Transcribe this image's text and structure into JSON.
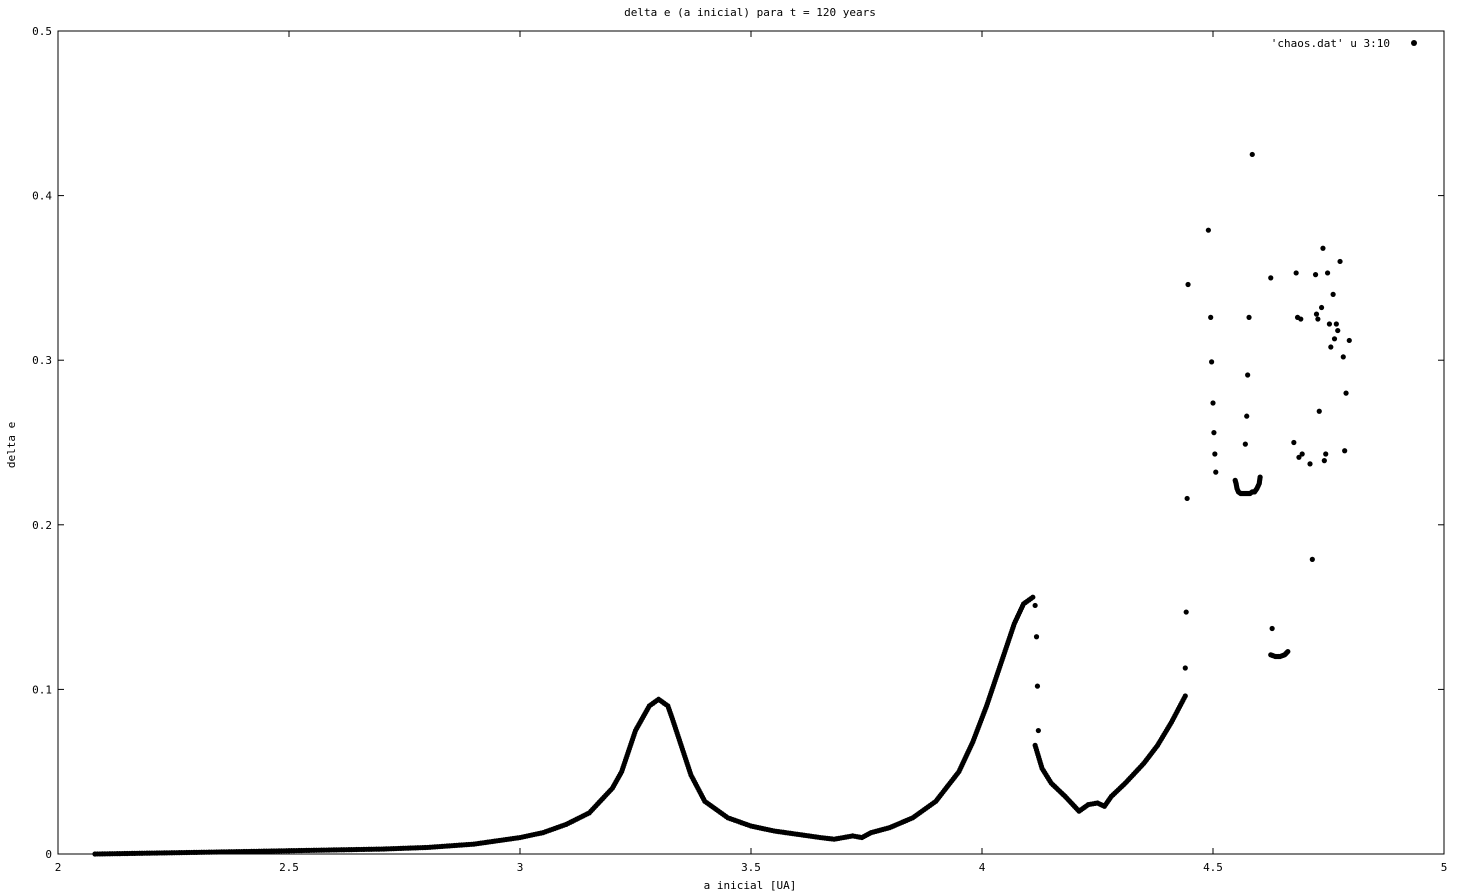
{
  "chart_data": {
    "type": "scatter",
    "title": "delta e (a inicial) para t = 120 years",
    "xlabel": "a inicial [UA]",
    "ylabel": "delta e",
    "xlim": [
      2,
      5
    ],
    "ylim": [
      0,
      0.5
    ],
    "x_ticks": [
      2,
      2.5,
      3,
      3.5,
      4,
      4.5,
      5
    ],
    "x_tick_labels": [
      "2",
      "2.5",
      "3",
      "3.5",
      "4",
      "4.5",
      "5"
    ],
    "y_ticks": [
      0,
      0.1,
      0.2,
      0.3,
      0.4,
      0.5
    ],
    "y_tick_labels": [
      "0",
      "0.1",
      "0.2",
      "0.3",
      "0.4",
      "0.5"
    ],
    "grid": false,
    "legend": {
      "position": "top-right",
      "entries": [
        "'chaos.dat' u 3:10"
      ]
    },
    "series": [
      {
        "name": "'chaos.dat' u 3:10",
        "color": "#000000",
        "curve_points": [
          [
            2.08,
            0.0
          ],
          [
            2.3,
            0.001
          ],
          [
            2.5,
            0.002
          ],
          [
            2.7,
            0.003
          ],
          [
            2.8,
            0.004
          ],
          [
            2.9,
            0.006
          ],
          [
            2.95,
            0.008
          ],
          [
            3.0,
            0.01
          ],
          [
            3.05,
            0.013
          ],
          [
            3.1,
            0.018
          ],
          [
            3.15,
            0.025
          ],
          [
            3.2,
            0.04
          ],
          [
            3.22,
            0.05
          ],
          [
            3.25,
            0.075
          ],
          [
            3.28,
            0.09
          ],
          [
            3.3,
            0.094
          ],
          [
            3.32,
            0.09
          ],
          [
            3.33,
            0.082
          ],
          [
            3.35,
            0.065
          ],
          [
            3.37,
            0.048
          ],
          [
            3.4,
            0.032
          ],
          [
            3.45,
            0.022
          ],
          [
            3.5,
            0.017
          ],
          [
            3.55,
            0.014
          ],
          [
            3.6,
            0.012
          ],
          [
            3.65,
            0.01
          ],
          [
            3.68,
            0.009
          ],
          [
            3.72,
            0.011
          ],
          [
            3.74,
            0.01
          ],
          [
            3.76,
            0.013
          ],
          [
            3.8,
            0.016
          ],
          [
            3.85,
            0.022
          ],
          [
            3.9,
            0.032
          ],
          [
            3.95,
            0.05
          ],
          [
            3.98,
            0.068
          ],
          [
            4.01,
            0.09
          ],
          [
            4.04,
            0.115
          ],
          [
            4.07,
            0.14
          ],
          [
            4.09,
            0.152
          ],
          [
            4.11,
            0.156
          ]
        ],
        "branch2_points": [
          [
            4.115,
            0.066
          ],
          [
            4.13,
            0.052
          ],
          [
            4.15,
            0.043
          ],
          [
            4.18,
            0.035
          ],
          [
            4.21,
            0.026
          ],
          [
            4.23,
            0.03
          ],
          [
            4.25,
            0.031
          ],
          [
            4.265,
            0.029
          ],
          [
            4.28,
            0.035
          ],
          [
            4.31,
            0.043
          ],
          [
            4.35,
            0.055
          ],
          [
            4.38,
            0.066
          ],
          [
            4.41,
            0.08
          ],
          [
            4.44,
            0.096
          ]
        ],
        "valley_points": [
          [
            4.548,
            0.227
          ],
          [
            4.55,
            0.225
          ],
          [
            4.552,
            0.222
          ],
          [
            4.555,
            0.22
          ],
          [
            4.56,
            0.219
          ],
          [
            4.565,
            0.219
          ],
          [
            4.57,
            0.219
          ],
          [
            4.575,
            0.219
          ],
          [
            4.58,
            0.219
          ],
          [
            4.585,
            0.22
          ],
          [
            4.59,
            0.22
          ],
          [
            4.595,
            0.222
          ],
          [
            4.6,
            0.225
          ],
          [
            4.602,
            0.229
          ]
        ],
        "cluster_points": [
          [
            4.625,
            0.121
          ],
          [
            4.635,
            0.12
          ],
          [
            4.645,
            0.12
          ],
          [
            4.655,
            0.121
          ],
          [
            4.662,
            0.123
          ]
        ],
        "scatter_points": [
          [
            4.115,
            0.151
          ],
          [
            4.118,
            0.132
          ],
          [
            4.12,
            0.102
          ],
          [
            4.122,
            0.075
          ],
          [
            4.44,
            0.113
          ],
          [
            4.442,
            0.147
          ],
          [
            4.444,
            0.216
          ],
          [
            4.446,
            0.346
          ],
          [
            4.49,
            0.379
          ],
          [
            4.495,
            0.326
          ],
          [
            4.497,
            0.299
          ],
          [
            4.5,
            0.274
          ],
          [
            4.502,
            0.256
          ],
          [
            4.504,
            0.243
          ],
          [
            4.506,
            0.232
          ],
          [
            4.57,
            0.249
          ],
          [
            4.573,
            0.266
          ],
          [
            4.575,
            0.291
          ],
          [
            4.578,
            0.326
          ],
          [
            4.585,
            0.425
          ],
          [
            4.625,
            0.35
          ],
          [
            4.628,
            0.137
          ],
          [
            4.675,
            0.25
          ],
          [
            4.68,
            0.353
          ],
          [
            4.683,
            0.326
          ],
          [
            4.686,
            0.241
          ],
          [
            4.69,
            0.325
          ],
          [
            4.693,
            0.243
          ],
          [
            4.71,
            0.237
          ],
          [
            4.715,
            0.179
          ],
          [
            4.722,
            0.352
          ],
          [
            4.724,
            0.328
          ],
          [
            4.727,
            0.325
          ],
          [
            4.73,
            0.269
          ],
          [
            4.735,
            0.332
          ],
          [
            4.738,
            0.368
          ],
          [
            4.741,
            0.239
          ],
          [
            4.744,
            0.243
          ],
          [
            4.748,
            0.353
          ],
          [
            4.752,
            0.322
          ],
          [
            4.755,
            0.308
          ],
          [
            4.76,
            0.34
          ],
          [
            4.763,
            0.313
          ],
          [
            4.767,
            0.322
          ],
          [
            4.77,
            0.318
          ],
          [
            4.775,
            0.36
          ],
          [
            4.782,
            0.302
          ],
          [
            4.785,
            0.245
          ],
          [
            4.788,
            0.28
          ],
          [
            4.795,
            0.312
          ]
        ]
      }
    ]
  }
}
